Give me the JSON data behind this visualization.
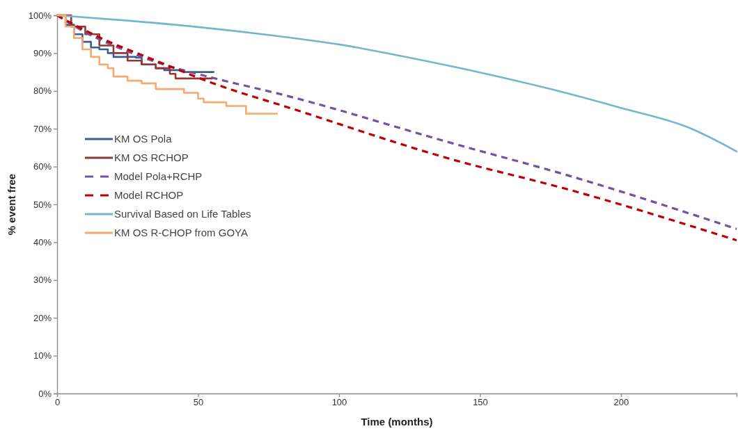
{
  "chart_data": {
    "type": "line",
    "xlabel": "Time (months)",
    "ylabel": "% event free",
    "xlim": [
      0,
      241
    ],
    "xticks": [
      0,
      50,
      100,
      150,
      200
    ],
    "ylim": [
      0,
      100
    ],
    "yticks": [
      {
        "value": 0,
        "label": "0%"
      },
      {
        "value": 10,
        "label": "10%"
      },
      {
        "value": 20,
        "label": "20%"
      },
      {
        "value": 30,
        "label": "30%"
      },
      {
        "value": 40,
        "label": "40%"
      },
      {
        "value": 50,
        "label": "50%"
      },
      {
        "value": 60,
        "label": "60%"
      },
      {
        "value": 70,
        "label": "70%"
      },
      {
        "value": 80,
        "label": "80%"
      },
      {
        "value": 90,
        "label": "90%"
      },
      {
        "value": 100,
        "label": "100%"
      }
    ],
    "grid": false,
    "legend": "left",
    "marker": "none",
    "series": [
      {
        "name": "KM OS Pola",
        "type": "step",
        "color": "#3a5f8f",
        "line_style": "solid",
        "x": [
          0,
          3,
          6,
          9,
          12,
          15,
          18,
          20,
          28,
          30,
          35,
          38,
          45,
          55.5
        ],
        "values": [
          100,
          97.5,
          95,
          93,
          91.5,
          91,
          90,
          89,
          88.8,
          87,
          86,
          85.5,
          85,
          85
        ]
      },
      {
        "name": "KM OS RCHOP",
        "type": "step",
        "color": "#943634",
        "line_style": "solid",
        "x": [
          0,
          5,
          10,
          15,
          20,
          25,
          30,
          35,
          40,
          42,
          55
        ],
        "values": [
          100,
          97,
          95,
          92,
          90,
          88,
          87,
          86,
          84.5,
          83.3,
          83.3
        ]
      },
      {
        "name": "Model Pola+RCHP",
        "color": "#7153a0",
        "line_style": "dashed",
        "x": [
          0,
          10,
          20,
          30,
          40,
          55,
          80,
          140,
          181,
          241
        ],
        "values": [
          100,
          95.5,
          92,
          89,
          86.5,
          83.5,
          79,
          66.2,
          57.7,
          43.5
        ]
      },
      {
        "name": "Model RCHOP",
        "color": "#c00000",
        "line_style": "dashed",
        "x": [
          0,
          10,
          20,
          30,
          40,
          50,
          60,
          80,
          140,
          181,
          241
        ],
        "values": [
          100,
          96,
          92.5,
          89.5,
          86.5,
          83.5,
          80.8,
          76.1,
          61.9,
          54,
          40.5
        ]
      },
      {
        "name": "Survival Based on Life Tables",
        "color": "#73b6ce",
        "line_style": "solid",
        "x": [
          0,
          25,
          50,
          75,
          100,
          125,
          150,
          175,
          200,
          225,
          241
        ],
        "values": [
          100,
          98.6,
          96.9,
          94.8,
          92.3,
          88.8,
          84.9,
          80.5,
          75.5,
          70,
          64
        ]
      },
      {
        "name": "KM OS R-CHOP from GOYA",
        "type": "step",
        "color": "#f9a86e",
        "line_style": "solid",
        "x": [
          0,
          3,
          6,
          9,
          12,
          15,
          18,
          20,
          25,
          30,
          35,
          45,
          50,
          52,
          60,
          67,
          78
        ],
        "values": [
          100,
          97,
          94,
          91,
          89,
          87,
          86,
          83.8,
          82.7,
          82,
          80.5,
          79.5,
          78,
          77,
          76,
          74,
          74
        ]
      }
    ]
  }
}
